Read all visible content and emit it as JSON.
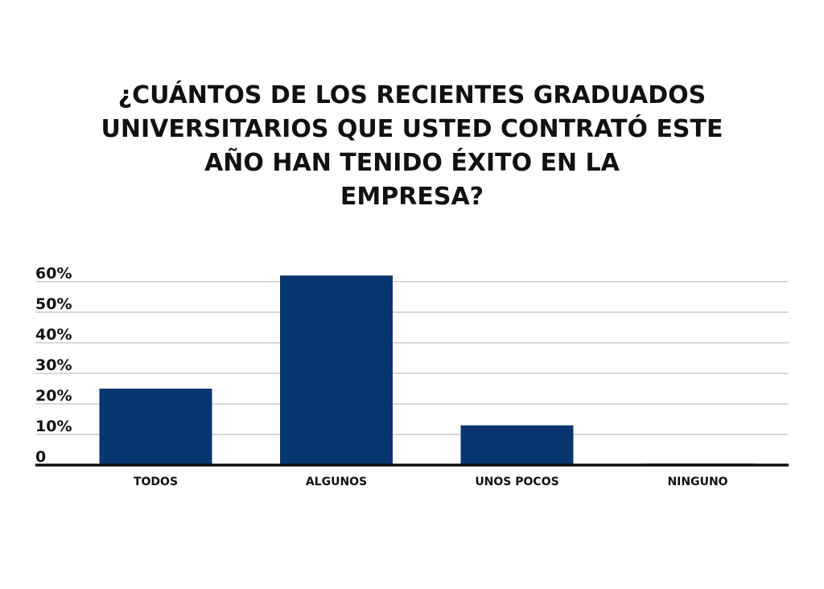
{
  "chart_data": {
    "type": "bar",
    "title_lines": [
      "¿CUÁNTOS DE LOS RECIENTES GRADUADOS",
      "UNIVERSITARIOS QUE USTED CONTRATÓ ESTE",
      "AÑO HAN TENIDO ÉXITO EN LA",
      "EMPRESA?"
    ],
    "categories": [
      "TODOS",
      "ALGUNOS",
      "UNOS POCOS",
      "NINGUNO"
    ],
    "values": [
      25,
      62,
      13,
      0.5
    ],
    "ylim": [
      0,
      60
    ],
    "yticks": [
      0,
      10,
      20,
      30,
      40,
      50,
      60
    ],
    "ytick_labels": [
      "0",
      "10%",
      "20%",
      "30%",
      "40%",
      "50%",
      "60%"
    ],
    "grid": true,
    "legend": "none",
    "bar_color": "#083670",
    "axis_color": "#111111",
    "grid_color": "#b0b0b0"
  }
}
